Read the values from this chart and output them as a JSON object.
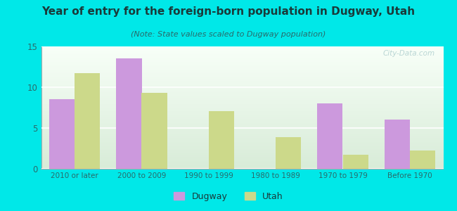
{
  "title": "Year of entry for the foreign-born population in Dugway, Utah",
  "subtitle": "(Note: State values scaled to Dugway population)",
  "categories": [
    "2010 or later",
    "2000 to 2009",
    "1990 to 1999",
    "1980 to 1989",
    "1970 to 1979",
    "Before 1970"
  ],
  "dugway_values": [
    8.5,
    13.5,
    0,
    0,
    8.0,
    6.0
  ],
  "utah_values": [
    11.7,
    9.3,
    7.1,
    3.9,
    1.7,
    2.2
  ],
  "dugway_color": "#cc99dd",
  "utah_color": "#ccd98a",
  "background_color": "#00e8e8",
  "plot_bg_top": "#f8fff8",
  "plot_bg_bottom": "#d8ecd8",
  "ylim": [
    0,
    15
  ],
  "yticks": [
    0,
    5,
    10,
    15
  ],
  "watermark": "City-Data.com",
  "bar_width": 0.38,
  "legend_dugway": "Dugway",
  "legend_utah": "Utah",
  "title_color": "#1a3a3a",
  "subtitle_color": "#2a6a6a",
  "tick_color": "#2a6a6a",
  "grid_color": "#ffffff"
}
